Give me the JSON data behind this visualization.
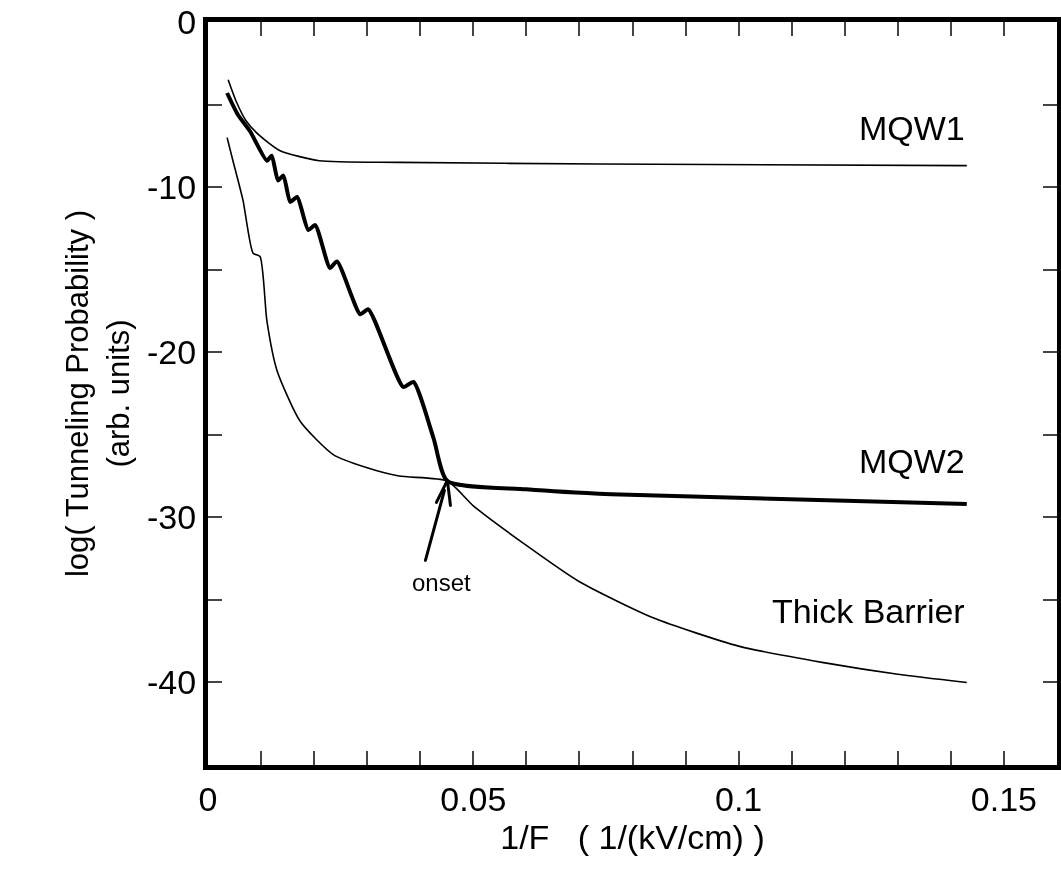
{
  "chart_data": {
    "type": "line",
    "xlabel": "1/F   ( 1/(kV/cm) )",
    "ylabel": "log( Tunneling Probability )\n(arb. units)",
    "xlim": [
      0,
      0.16
    ],
    "ylim": [
      -45,
      0
    ],
    "xticks": [
      0,
      {
        "value": 0.01,
        "label": null
      },
      {
        "value": 0.02,
        "label": null
      },
      {
        "value": 0.03,
        "label": null
      },
      {
        "value": 0.04,
        "label": null
      },
      0.05,
      {
        "value": 0.06,
        "label": null
      },
      {
        "value": 0.07,
        "label": null
      },
      {
        "value": 0.08,
        "label": null
      },
      {
        "value": 0.09,
        "label": null
      },
      0.1,
      {
        "value": 0.11,
        "label": null
      },
      {
        "value": 0.12,
        "label": null
      },
      {
        "value": 0.13,
        "label": null
      },
      {
        "value": 0.14,
        "label": null
      },
      0.15
    ],
    "yticks": [
      0,
      {
        "value": -5,
        "label": null
      },
      -10,
      {
        "value": -15,
        "label": null
      },
      -20,
      {
        "value": -25,
        "label": null
      },
      -30,
      {
        "value": -35,
        "label": null
      },
      -40
    ],
    "grid": false,
    "legend": false,
    "marker": "none",
    "line_style": "solid",
    "annotations": [
      "onset"
    ],
    "series": [
      {
        "name": "MQW1",
        "color": "#000000",
        "x": [
          0.0038,
          0.0053,
          0.0072,
          0.0098,
          0.0136,
          0.021,
          0.036,
          0.074,
          0.143
        ],
        "values": [
          -3.5,
          -4.8,
          -6.0,
          -6.9,
          -7.8,
          -8.4,
          -8.5,
          -8.6,
          -8.7
        ]
      },
      {
        "name": "MQW2",
        "color": "#000000",
        "x": [
          0.0036,
          0.0056,
          0.0079,
          0.0111,
          0.012,
          0.0132,
          0.0142,
          0.0155,
          0.0168,
          0.0189,
          0.0202,
          0.023,
          0.0243,
          0.0287,
          0.0302,
          0.0368,
          0.0387,
          0.0425,
          0.0451,
          0.06,
          0.076,
          0.143
        ],
        "values": [
          -4.3,
          -5.6,
          -6.6,
          -8.4,
          -8.1,
          -9.6,
          -9.3,
          -10.9,
          -10.6,
          -12.6,
          -12.3,
          -14.9,
          -14.5,
          -17.7,
          -17.4,
          -22.1,
          -21.8,
          -25.2,
          -27.8,
          -28.3,
          -28.6,
          -29.2
        ]
      },
      {
        "name": "Thick Barrier",
        "color": "#000000",
        "x": [
          0.0036,
          0.0047,
          0.0066,
          0.0085,
          0.0098,
          0.0111,
          0.013,
          0.0174,
          0.0236,
          0.03,
          0.036,
          0.0451,
          0.05,
          0.06,
          0.07,
          0.084,
          0.1,
          0.116,
          0.13,
          0.143
        ],
        "values": [
          -7.0,
          -8.4,
          -10.8,
          -14.0,
          -14.2,
          -18.1,
          -21.1,
          -24.2,
          -26.2,
          -27.0,
          -27.5,
          -27.8,
          -29.3,
          -31.7,
          -33.9,
          -36.1,
          -37.8,
          -38.8,
          -39.5,
          -40.0
        ]
      }
    ]
  }
}
